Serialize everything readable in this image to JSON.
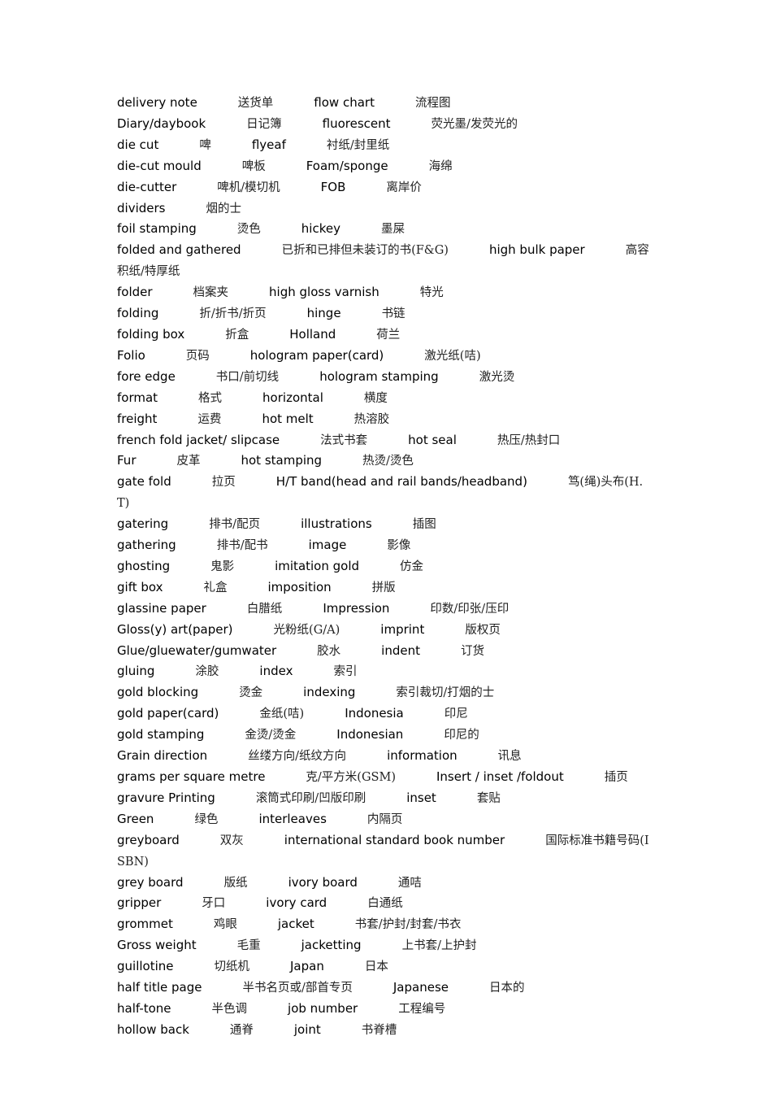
{
  "lines": [
    [
      "delivery note",
      "送货单",
      "flow chart",
      "流程图"
    ],
    [
      "Diary/daybook",
      "日记簿",
      "fluorescent",
      "荧光墨/发荧光的"
    ],
    [
      "die cut",
      "啤",
      "flyeaf",
      "衬纸/封里纸"
    ],
    [
      "die-cut mould",
      "啤板",
      "Foam/sponge",
      "海绵"
    ],
    [
      "die-cutter",
      "啤机/模切机",
      "FOB",
      "离岸价"
    ],
    [
      "dividers",
      "烟的士"
    ],
    [
      "foil stamping",
      "烫色",
      "hickey",
      "墨屎"
    ],
    [
      "folded and gathered",
      "已折和已排但未装订的书(F&G)",
      "high bulk paper",
      "高容积纸/特厚纸"
    ],
    [
      "folder",
      "档案夹",
      "high gloss varnish",
      "特光"
    ],
    [
      "folding",
      "折/折书/折页",
      "hinge",
      "书链"
    ],
    [
      "folding box",
      "折盒",
      "Holland",
      "荷兰"
    ],
    [
      "Folio",
      "页码",
      "hologram paper(card)",
      "激光纸(咭)"
    ],
    [
      "fore edge",
      "书口/前切线",
      "hologram stamping",
      "激光烫"
    ],
    [
      "format",
      "格式",
      "horizontal",
      "横度"
    ],
    [
      "freight",
      "运费",
      "hot melt",
      "热溶胶"
    ],
    [
      "french fold jacket/ slipcase",
      "法式书套",
      "hot seal",
      "热压/热封口"
    ],
    [
      "Fur",
      "皮革",
      "hot stamping",
      "热烫/烫色"
    ],
    [
      "gate fold",
      "拉页",
      "H/T band(head and rail bands/headband)",
      "笃(绳)头布(H.T)"
    ],
    [
      "gatering",
      "排书/配页",
      "illustrations",
      "插图"
    ],
    [
      "gathering",
      "排书/配书",
      "image",
      "影像"
    ],
    [
      "ghosting",
      "鬼影",
      "imitation gold",
      "仿金"
    ],
    [
      "gift box",
      "礼盒",
      "imposition",
      "拼版"
    ],
    [
      "glassine paper",
      "白腊纸",
      "Impression",
      "印数/印张/压印"
    ],
    [
      "Gloss(y) art(paper)",
      "光粉纸(G/A)",
      "imprint",
      "版权页"
    ],
    [
      "Glue/gluewater/gumwater",
      "胶水",
      "indent",
      "订货"
    ],
    [
      "gluing",
      "涂胶",
      "index",
      "索引"
    ],
    [
      "gold blocking",
      "烫金",
      "indexing",
      "索引裁切/打烟的士"
    ],
    [
      "gold paper(card)",
      "金纸(咭)",
      "Indonesia",
      "印尼"
    ],
    [
      "gold stamping",
      "金烫/烫金",
      "Indonesian",
      "印尼的"
    ],
    [
      "Grain direction",
      "丝缕方向/纸纹方向",
      "information",
      "讯息"
    ],
    [
      "grams per square metre",
      "克/平方米(GSM)",
      "Insert / inset /foldout",
      "插页"
    ],
    [
      "gravure Printing",
      "滚筒式印刷/凹版印刷",
      "inset",
      "套贴"
    ],
    [
      "Green",
      "绿色",
      "interleaves",
      "内隔页"
    ],
    [
      "greyboard",
      "双灰",
      "international standard book number",
      "国际标准书籍号码(ISBN)"
    ],
    [
      "grey board",
      "版纸",
      "ivory board",
      "通咭"
    ],
    [
      "gripper",
      "牙口",
      "ivory card",
      "白通纸"
    ],
    [
      "grommet",
      "鸡眼",
      "jacket",
      "书套/护封/封套/书衣"
    ],
    [
      "Gross weight",
      "毛重",
      "jacketting",
      "上书套/上护封"
    ],
    [
      "guillotine",
      "切纸机",
      "Japan",
      "日本"
    ],
    [
      "half title page",
      "半书名页或/部首专页",
      "Japanese",
      "日本的"
    ],
    [
      "half-tone",
      "半色调",
      "job number",
      "工程编号"
    ],
    [
      "hollow back",
      "通脊",
      "joint",
      "书脊槽"
    ]
  ]
}
